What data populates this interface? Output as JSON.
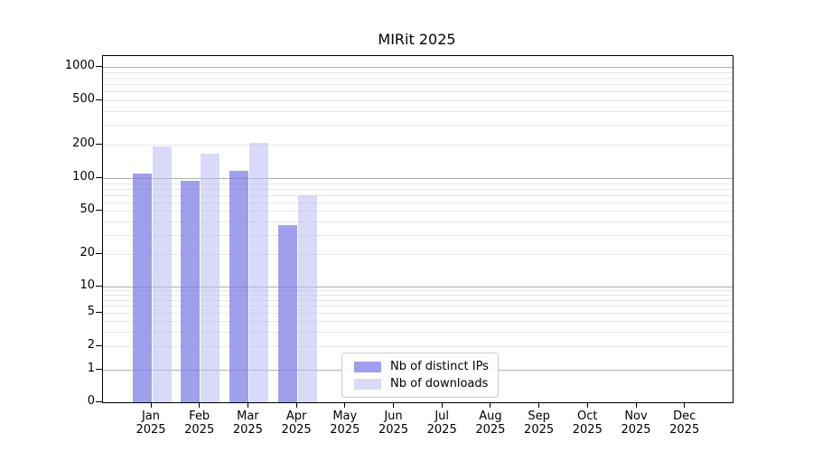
{
  "chart_data": {
    "type": "bar",
    "title": "MIRit 2025",
    "categories": [
      "Jan",
      "Feb",
      "Mar",
      "Apr",
      "May",
      "Jun",
      "Jul",
      "Aug",
      "Sep",
      "Oct",
      "Nov",
      "Dec"
    ],
    "category_year": "2025",
    "series": [
      {
        "name": "Nb of distinct IPs",
        "color": "rgba(122,122,229,0.72)",
        "values": [
          110,
          95,
          115,
          37,
          0,
          0,
          0,
          0,
          0,
          0,
          0,
          0
        ]
      },
      {
        "name": "Nb of downloads",
        "color": "rgba(185,185,243,0.55)",
        "values": [
          190,
          165,
          205,
          70,
          0,
          0,
          0,
          0,
          0,
          0,
          0,
          0
        ]
      }
    ],
    "yaxis": {
      "ticks": [
        {
          "v": 0,
          "f": 0,
          "major": false
        },
        {
          "v": 1,
          "f": 0.094,
          "major": true
        },
        {
          "v": 2,
          "f": 0.1619,
          "major": false
        },
        {
          "v": 5,
          "f": 0.2585,
          "major": false
        },
        {
          "v": 10,
          "f": 0.3342,
          "major": true
        },
        {
          "v": 20,
          "f": 0.4282,
          "major": false
        },
        {
          "v": 50,
          "f": 0.5535,
          "major": false
        },
        {
          "v": 100,
          "f": 0.6475,
          "major": true
        },
        {
          "v": 200,
          "f": 0.7454,
          "major": false
        },
        {
          "v": 500,
          "f": 0.8721,
          "major": false
        },
        {
          "v": 1000,
          "f": 0.9687,
          "major": true
        }
      ],
      "minor_values": [
        3,
        4,
        6,
        7,
        8,
        9,
        30,
        40,
        60,
        70,
        80,
        90,
        300,
        400,
        600,
        700,
        800,
        900
      ]
    },
    "legend_position": "lower center-left inside plot",
    "grid": "on",
    "colors": {
      "grid_major": "#b0b0b0",
      "grid_minor": "#e8e8e8",
      "axis": "#000000",
      "background": "#ffffff"
    }
  }
}
